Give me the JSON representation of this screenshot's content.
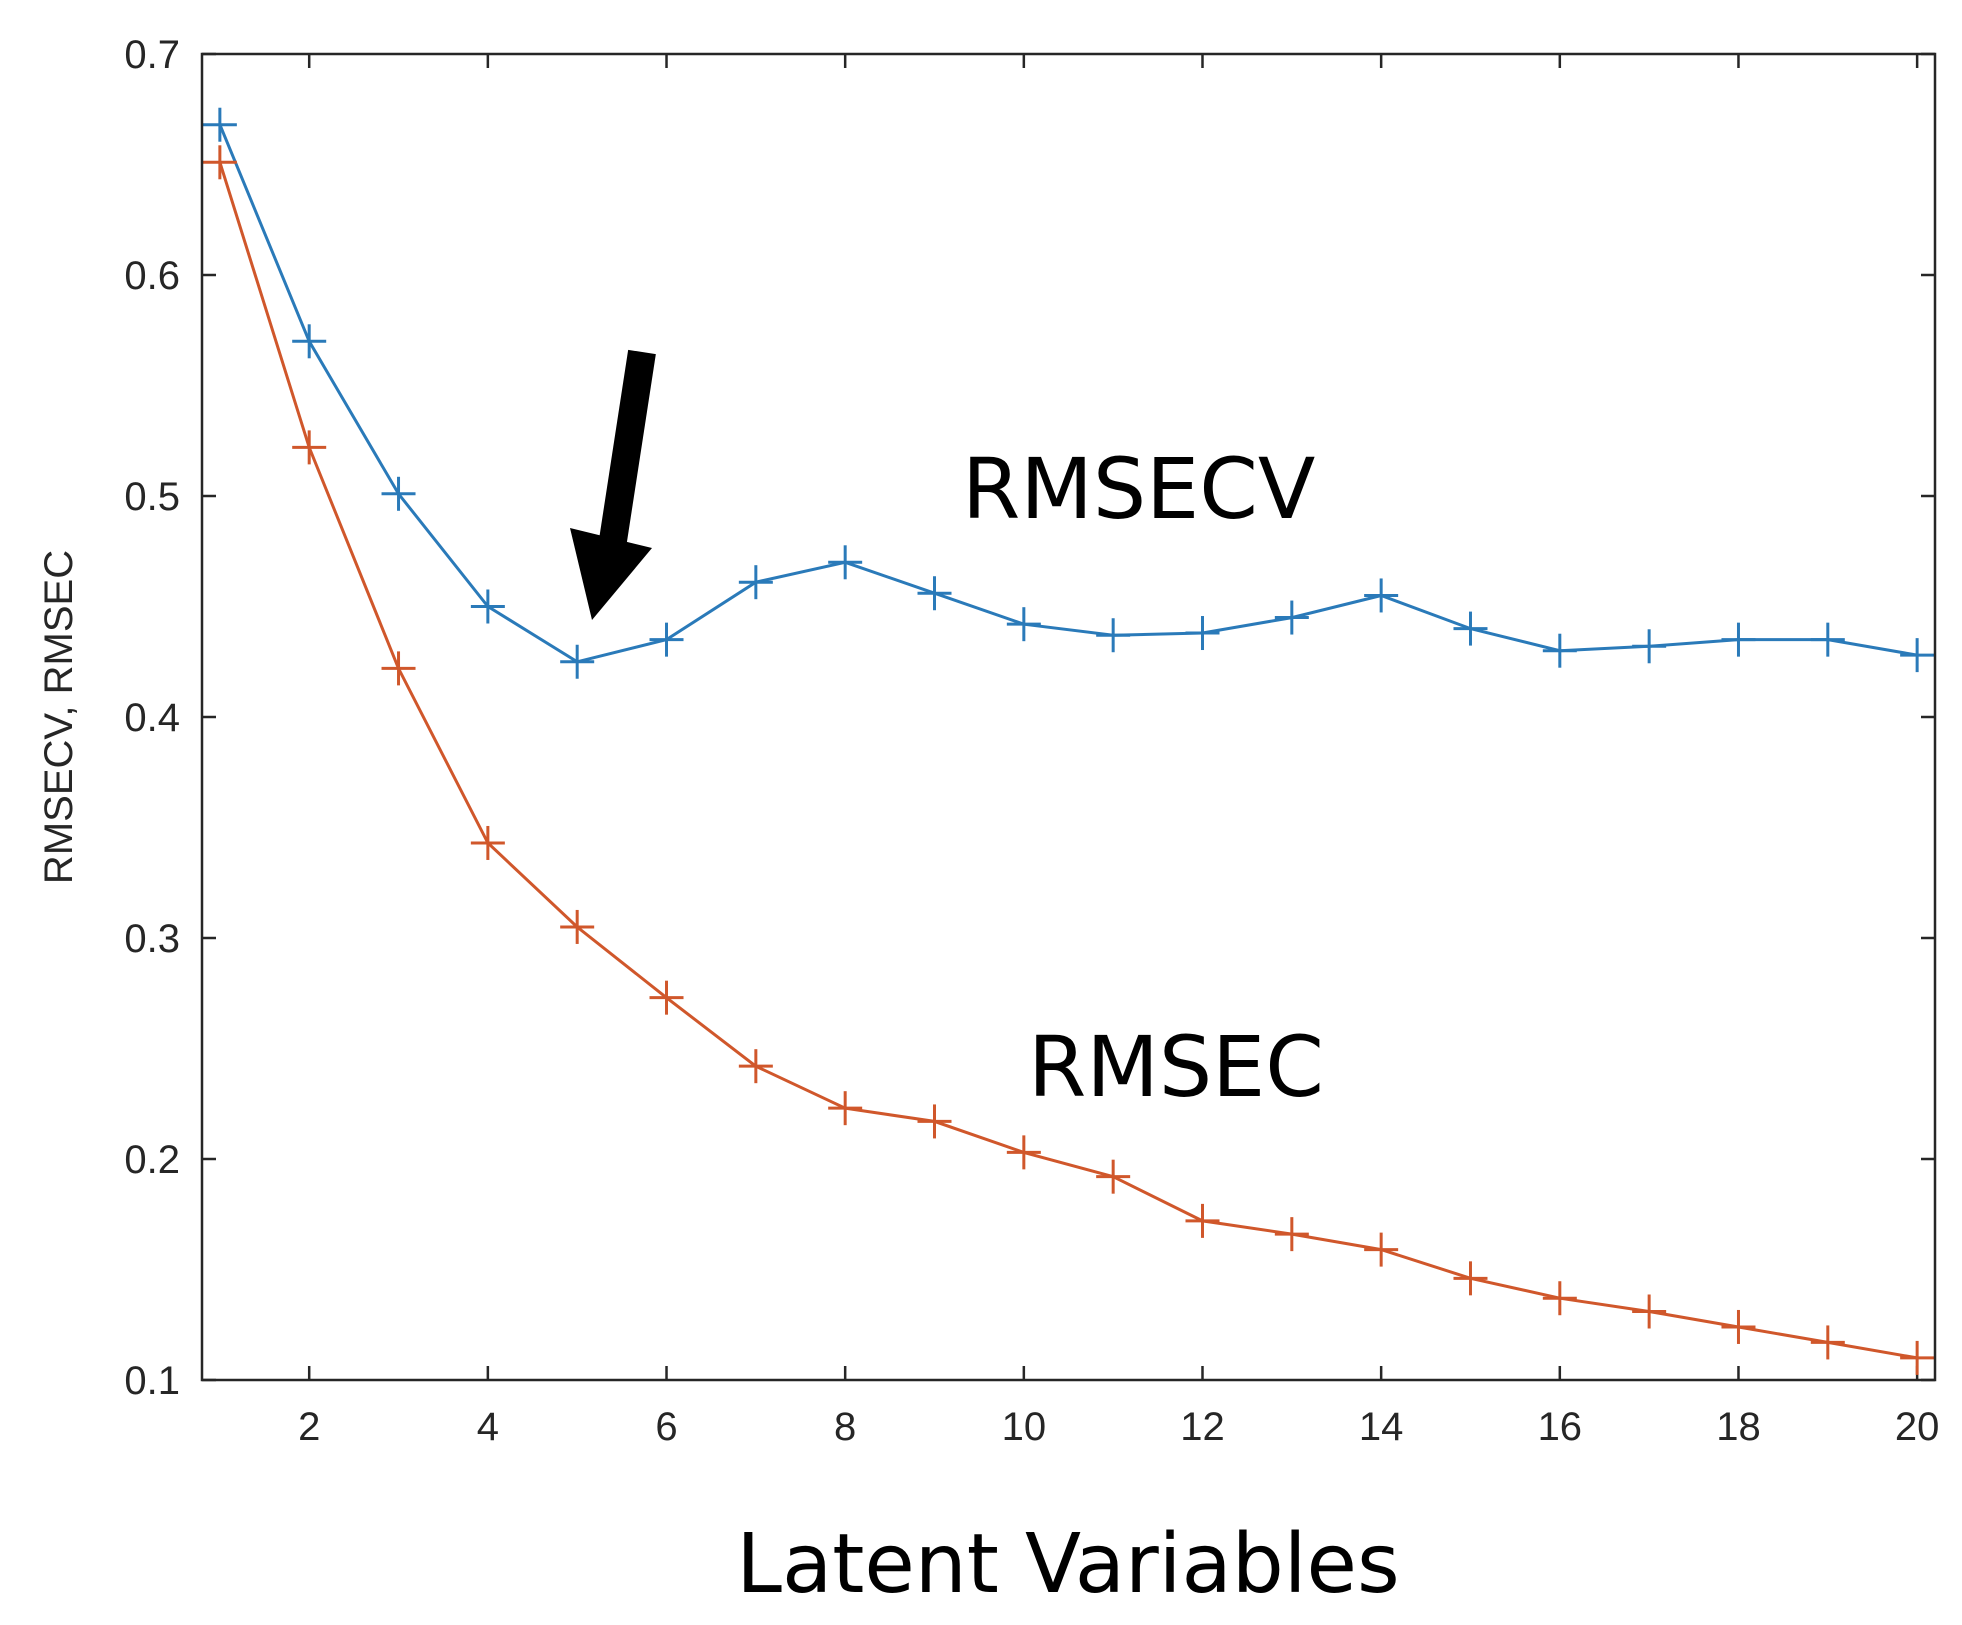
{
  "chart_data": {
    "type": "line",
    "title": "",
    "xlabel": "Latent Variables",
    "ylabel": "RMSECV, RMSEC",
    "xlim": [
      0.8,
      20.2
    ],
    "ylim": [
      0.1,
      0.7
    ],
    "xticks": [
      2,
      4,
      6,
      8,
      10,
      12,
      14,
      16,
      18,
      20
    ],
    "yticks": [
      0.1,
      0.2,
      0.3,
      0.4,
      0.5,
      0.6,
      0.7
    ],
    "ytick_labels": [
      "0.1",
      "0.2",
      "0.3",
      "0.4",
      "0.5",
      "0.6",
      "0.7"
    ],
    "x": [
      1,
      2,
      3,
      4,
      5,
      6,
      7,
      8,
      9,
      10,
      11,
      12,
      13,
      14,
      15,
      16,
      17,
      18,
      19,
      20
    ],
    "series": [
      {
        "name": "RMSECV",
        "color": "#2a7ab9",
        "marker": "plus",
        "values": [
          0.668,
          0.57,
          0.501,
          0.45,
          0.425,
          0.435,
          0.461,
          0.47,
          0.456,
          0.442,
          0.437,
          0.438,
          0.445,
          0.455,
          0.44,
          0.43,
          0.432,
          0.435,
          0.435,
          0.428
        ]
      },
      {
        "name": "RMSEC",
        "color": "#d0572b",
        "marker": "plus",
        "values": [
          0.651,
          0.522,
          0.422,
          0.343,
          0.305,
          0.273,
          0.242,
          0.223,
          0.217,
          0.203,
          0.192,
          0.172,
          0.166,
          0.159,
          0.146,
          0.137,
          0.131,
          0.124,
          0.117,
          0.11
        ]
      }
    ],
    "annotations": [
      {
        "text": "RMSECV",
        "x": 9.2,
        "y": 0.5,
        "series": "RMSECV"
      },
      {
        "text": "RMSEC",
        "x": 10.2,
        "y": 0.236,
        "series": "RMSEC"
      },
      {
        "type": "arrow",
        "points_to_x": 5,
        "description": "black arrow pointing to minimum of RMSECV"
      }
    ],
    "grid": false,
    "legend": "none"
  }
}
